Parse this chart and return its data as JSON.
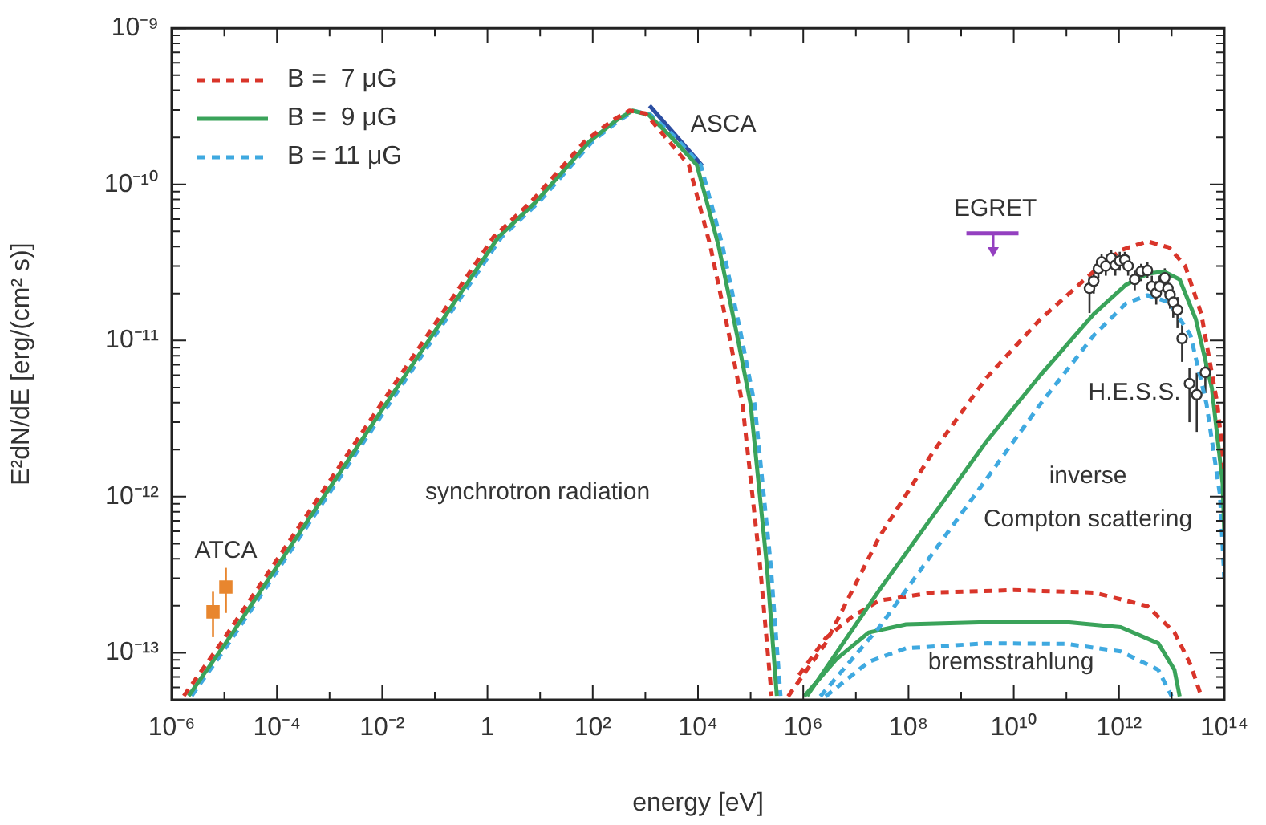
{
  "chart_data": {
    "type": "line",
    "xlabel": "energy [eV]",
    "ylabel": "E²dN/dE [erg/(cm² s)]",
    "log": "xy",
    "grid": false,
    "legend": "top left",
    "marker": "none",
    "xlim": [
      1e-06,
      100000000000000.0
    ],
    "ylim": [
      5e-14,
      1e-09
    ],
    "xticks": [
      {
        "value": 1e-06,
        "label": "10⁻⁶"
      },
      {
        "value": 1e-05,
        "label": null
      },
      {
        "value": 0.0001,
        "label": "10⁻⁴"
      },
      {
        "value": 0.001,
        "label": null
      },
      {
        "value": 0.01,
        "label": "10⁻²"
      },
      {
        "value": 0.1,
        "label": null
      },
      1,
      {
        "value": 10,
        "label": null
      },
      {
        "value": 100,
        "label": "10²"
      },
      {
        "value": 1000,
        "label": null
      },
      {
        "value": 10000.0,
        "label": "10⁴"
      },
      {
        "value": 100000.0,
        "label": null
      },
      {
        "value": 1000000.0,
        "label": "10⁶"
      },
      {
        "value": 10000000.0,
        "label": null
      },
      {
        "value": 100000000.0,
        "label": "10⁸"
      },
      {
        "value": 1000000000.0,
        "label": null
      },
      {
        "value": 10000000000.0,
        "label": "10¹⁰"
      },
      {
        "value": 100000000000.0,
        "label": null
      },
      {
        "value": 1000000000000.0,
        "label": "10¹²"
      },
      {
        "value": 10000000000000.0,
        "label": null
      },
      {
        "value": 100000000000000.0,
        "label": "10¹⁴"
      }
    ],
    "yticks": [
      {
        "value": 6e-14,
        "label": null
      },
      {
        "value": 7e-14,
        "label": null
      },
      {
        "value": 8e-14,
        "label": null
      },
      {
        "value": 9e-14,
        "label": null
      },
      {
        "value": 1e-13,
        "label": "10⁻¹³"
      },
      {
        "value": 2e-13,
        "label": null
      },
      {
        "value": 3e-13,
        "label": null
      },
      {
        "value": 4e-13,
        "label": null
      },
      {
        "value": 5e-13,
        "label": null
      },
      {
        "value": 6e-13,
        "label": null
      },
      {
        "value": 7e-13,
        "label": null
      },
      {
        "value": 8e-13,
        "label": null
      },
      {
        "value": 9e-13,
        "label": null
      },
      {
        "value": 1e-12,
        "label": "10⁻¹²"
      },
      {
        "value": 2e-12,
        "label": null
      },
      {
        "value": 3e-12,
        "label": null
      },
      {
        "value": 4e-12,
        "label": null
      },
      {
        "value": 5e-12,
        "label": null
      },
      {
        "value": 6e-12,
        "label": null
      },
      {
        "value": 7e-12,
        "label": null
      },
      {
        "value": 8e-12,
        "label": null
      },
      {
        "value": 9e-12,
        "label": null
      },
      {
        "value": 1e-11,
        "label": "10⁻¹¹"
      },
      {
        "value": 2e-11,
        "label": null
      },
      {
        "value": 3e-11,
        "label": null
      },
      {
        "value": 4e-11,
        "label": null
      },
      {
        "value": 5e-11,
        "label": null
      },
      {
        "value": 6e-11,
        "label": null
      },
      {
        "value": 7e-11,
        "label": null
      },
      {
        "value": 8e-11,
        "label": null
      },
      {
        "value": 9e-11,
        "label": null
      },
      {
        "value": 1e-10,
        "label": "10⁻¹⁰"
      },
      {
        "value": 2e-10,
        "label": null
      },
      {
        "value": 3e-10,
        "label": null
      },
      {
        "value": 4e-10,
        "label": null
      },
      {
        "value": 5e-10,
        "label": null
      },
      {
        "value": 6e-10,
        "label": null
      },
      {
        "value": 7e-10,
        "label": null
      },
      {
        "value": 8e-10,
        "label": null
      },
      {
        "value": 9e-10,
        "label": null
      },
      {
        "value": 1e-09,
        "label": "10⁻⁹"
      }
    ],
    "series": [
      {
        "name": "B =  7 μG",
        "color": "#d9352a",
        "line_style": "dashed",
        "x": [
          1.7e-06,
          8.3e-06,
          0.00057,
          0.0095,
          0.158,
          1.3,
          6.6,
          71,
          240,
          500,
          1000,
          2300,
          6700,
          17000.0,
          39000.0,
          70000.0,
          150000.0,
          250000.0
        ],
        "values": [
          5.3e-14,
          1.13e-13,
          9.48e-13,
          3.91e-12,
          1.6e-11,
          4.6e-11,
          7.67e-11,
          1.89e-10,
          2.58e-10,
          2.97e-10,
          2.85e-10,
          2.04e-10,
          1.33e-10,
          4.09e-11,
          1.08e-11,
          3.91e-12,
          3.72e-13,
          5.3e-14
        ]
      },
      {
        "name": "B =  9 μG",
        "color": "#3aa35a",
        "line_style": "solid",
        "x": [
          2.1e-06,
          1.02e-05,
          0.000698,
          0.0117,
          0.195,
          1.61,
          8.15,
          87.5,
          282,
          569,
          1150,
          2960,
          9530,
          24400.0,
          55300.0,
          100000.0,
          202000.0,
          315000.0
        ],
        "values": [
          5.3e-14,
          1.13e-13,
          9.48e-13,
          3.91e-12,
          1.6e-11,
          4.6e-11,
          7.67e-11,
          1.89e-10,
          2.58e-10,
          2.97e-10,
          2.79e-10,
          2.04e-10,
          1.33e-10,
          4.09e-11,
          1.08e-11,
          3.91e-12,
          3.72e-13,
          5.3e-14
        ]
      },
      {
        "name": "B = 11 μG",
        "color": "#3fa9e0",
        "line_style": "dashed",
        "x": [
          2.4e-06,
          1.17e-05,
          0.0008,
          0.0135,
          0.224,
          1.85,
          9.4,
          100,
          320,
          620,
          1250,
          3500,
          11300.0,
          29000.0,
          66000.0,
          119000.0,
          240000.0,
          370000.0
        ],
        "values": [
          5.3e-14,
          1.13e-13,
          9.48e-13,
          3.91e-12,
          1.6e-11,
          4.6e-11,
          7.67e-11,
          1.89e-10,
          2.58e-10,
          2.95e-10,
          2.8e-10,
          2.04e-10,
          1.33e-10,
          4.09e-11,
          1.08e-11,
          3.91e-12,
          3.72e-13,
          5.3e-14
        ]
      },
      {
        "color": "#d9352a",
        "line_style": "dashed",
        "x": [
          516000.0,
          2660000.0,
          27900000.0,
          292000000.0,
          3040000000.0,
          32000000000.0,
          333000000000.0,
          1080000000000.0,
          3480000000000.0,
          8930000000000.0,
          18100000000000.0,
          36600000000000.0,
          74000000000000.0,
          100000000000000.0
        ],
        "values": [
          5.26e-14,
          1.15e-13,
          5.52e-13,
          1.93e-12,
          5.78e-12,
          1.37e-11,
          2.77e-11,
          3.79e-11,
          4.32e-11,
          3.94e-11,
          3e-11,
          1.48e-11,
          3.91e-12,
          1.5e-12
        ]
      },
      {
        "color": "#3aa35a",
        "line_style": "solid",
        "x": [
          1180000.0,
          27900000.0,
          292000000.0,
          3040000000.0,
          32000000000.0,
          333000000000.0,
          1360000000000.0,
          3480000000000.0,
          7030000000000.0,
          14200000000000.0,
          28800000000000.0,
          58200000000000.0,
          93000000000000.0,
          100000000000000.0
        ],
        "values": [
          5.3e-14,
          2.52e-13,
          7.55e-13,
          2.26e-12,
          6e-12,
          1.48e-11,
          2.28e-11,
          2.67e-11,
          2.77e-11,
          2.46e-11,
          1.37e-11,
          4.94e-12,
          1.21e-12,
          6e-13
        ]
      },
      {
        "color": "#3fa9e0",
        "line_style": "dashed",
        "x": [
          2110000.0,
          27900000.0,
          292000000.0,
          3040000000.0,
          32000000000.0,
          333000000000.0,
          1360000000000.0,
          3480000000000.0,
          8930000000000.0,
          22800000000000.0,
          46100000000000.0,
          82600000000000.0,
          100000000000000.0
        ],
        "values": [
          5.26e-14,
          1.46e-13,
          4.37e-13,
          1.3e-12,
          3.91e-12,
          1.08e-11,
          1.73e-11,
          1.95e-11,
          1.76e-11,
          1.08e-11,
          3.91e-12,
          1.03e-12,
          3e-13
        ]
      },
      {
        "color": "#d9352a",
        "line_style": "dashed",
        "x": [
          830000.0,
          2660000.0,
          8600000.0,
          27900000.0,
          292000000.0,
          9860000000.0,
          333000000000.0,
          3480000000000.0,
          11300000000000.0,
          22800000000000.0,
          36600000000000.0
        ],
        "values": [
          7.2e-14,
          1.24e-13,
          1.71e-13,
          2.16e-13,
          2.43e-13,
          2.52e-13,
          2.43e-13,
          1.99e-13,
          1.35e-13,
          8.43e-14,
          5.26e-14
        ]
      },
      {
        "color": "#3aa35a",
        "line_style": "solid",
        "x": [
          1040000.0,
          4270000.0,
          17500000.0,
          90000000.0,
          3040000000.0,
          103000000000.0,
          1080000000000.0,
          5570000000000.0,
          11300000000000.0,
          14200000000000.0
        ],
        "values": [
          5.26e-14,
          9.1e-14,
          1.35e-13,
          1.52e-13,
          1.57e-13,
          1.57e-13,
          1.46e-13,
          1.15e-13,
          7.78e-14,
          5.26e-14
        ]
      },
      {
        "color": "#3fa9e0",
        "line_style": "dashed",
        "x": [
          2660000.0,
          17500000.0,
          90000000.0,
          3040000000.0,
          103000000000.0,
          1080000000000.0,
          5570000000000.0,
          10000000000000.0
        ],
        "values": [
          5.26e-14,
          8.75e-14,
          1.07e-13,
          1.15e-13,
          1.14e-13,
          1.02e-13,
          7.78e-14,
          5.26e-14
        ]
      },
      {
        "name": "ASCA",
        "color": "#2b4ea2",
        "x": [
          1200,
          12000
        ],
        "values": [
          3.2e-10,
          1.32e-10
        ]
      },
      {
        "type": "scatter",
        "name": "ATCA",
        "color": "#e8862e",
        "marker": "square",
        "x": [
          6.1e-06,
          1.07e-05
        ],
        "values": [
          1.83e-13,
          2.64e-13
        ],
        "errors": [
          [
            1.26e-13,
            2.46e-13
          ],
          [
            1.8e-13,
            3.5e-13
          ]
        ]
      },
      {
        "type": "line",
        "name": "EGRET",
        "color": "#9440c0",
        "x": [
          1260000000.0,
          12300000000.0
        ],
        "values": [
          4.86e-11,
          4.86e-11
        ]
      },
      {
        "type": "scatter",
        "name": "H.E.S.S.",
        "color": "#333333",
        "marker": "circle",
        "x": [
          275000000000.0,
          330000000000.0,
          405000000000.0,
          466000000000.0,
          560000000000.0,
          710000000000.0,
          850000000000.0,
          1030000000000.0,
          1290000000000.0,
          1490000000000.0,
          1990000000000.0,
          2630000000000.0,
          3470000000000.0,
          4200000000000.0,
          5100000000000.0,
          5900000000000.0,
          7400000000000.0,
          8500000000000.0,
          9300000000000.0,
          10700000000000.0,
          12900000000000.0,
          15800000000000.0,
          21800000000000.0,
          30000000000000.0,
          43700000000000.0
        ],
        "values": [
          2.16e-11,
          2.4e-11,
          2.88e-11,
          3.18e-11,
          3e-11,
          3.37e-11,
          3.04e-11,
          3.24e-11,
          3.29e-11,
          3e-11,
          2.46e-11,
          2.77e-11,
          2.81e-11,
          2.22e-11,
          2.02e-11,
          2.22e-11,
          2.52e-11,
          2.16e-11,
          1.96e-11,
          1.76e-11,
          1.57e-11,
          1.03e-11,
          5.3e-12,
          4.5e-12,
          6.25e-12
        ],
        "errors": [
          [
            1.5e-11,
            2.6e-11
          ],
          [
            2e-11,
            2.8e-11
          ],
          [
            2.5e-11,
            3.3e-11
          ],
          [
            2.8e-11,
            3.6e-11
          ],
          [
            2.6e-11,
            3.4e-11
          ],
          [
            2.9e-11,
            3.8e-11
          ],
          [
            2.6e-11,
            3.5e-11
          ],
          [
            2.8e-11,
            3.7e-11
          ],
          [
            2.9e-11,
            3.7e-11
          ],
          [
            2.6e-11,
            3.4e-11
          ],
          [
            2.1e-11,
            2.8e-11
          ],
          [
            2.4e-11,
            3.1e-11
          ],
          [
            2.5e-11,
            3.2e-11
          ],
          [
            1.9e-11,
            2.6e-11
          ],
          [
            1.7e-11,
            2.4e-11
          ],
          [
            1.9e-11,
            2.6e-11
          ],
          [
            2.1e-11,
            2.9e-11
          ],
          [
            1.8e-11,
            2.5e-11
          ],
          [
            1.6e-11,
            2.3e-11
          ],
          [
            1.4e-11,
            2.1e-11
          ],
          [
            1.2e-11,
            1.9e-11
          ],
          [
            7.3e-12,
            1.26e-11
          ],
          [
            3e-12,
            6.7e-12
          ],
          [
            2.6e-12,
            6.2e-12
          ],
          [
            4.6e-12,
            8.3e-12
          ]
        ]
      }
    ],
    "annotations": [
      "synchrotron radiation",
      "inverse",
      "Compton scattering",
      "bremsstrahlung"
    ]
  }
}
